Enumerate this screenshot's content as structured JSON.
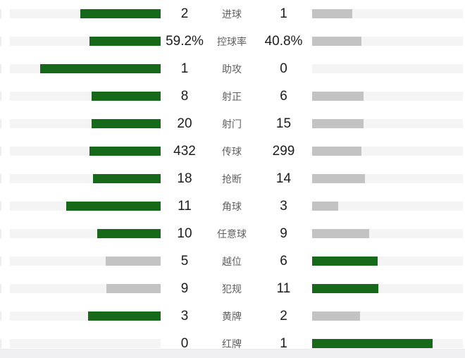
{
  "colors": {
    "background": "#ffffff",
    "leader_green": "#17691a",
    "trailer_gray": "#c3c3c3",
    "track_gray": "#f4f4f5",
    "value_text": "#1c1c1e",
    "label_text": "#5f5f61",
    "footer_strip": "#f0f0f2"
  },
  "chart_data": {
    "type": "bar",
    "orientation": "horizontal-paired",
    "title": "",
    "categories": [
      "进球",
      "控球率",
      "助攻",
      "射正",
      "射门",
      "传球",
      "抢断",
      "角球",
      "任意球",
      "越位",
      "犯规",
      "黄牌",
      "红牌"
    ],
    "series": [
      {
        "name": "home-team",
        "values": [
          2,
          59.2,
          1,
          8,
          20,
          432,
          18,
          11,
          10,
          5,
          9,
          3,
          0
        ]
      },
      {
        "name": "away-team",
        "values": [
          1,
          40.8,
          0,
          6,
          15,
          299,
          14,
          3,
          9,
          6,
          11,
          2,
          1
        ]
      }
    ],
    "grid": false,
    "legend": "none",
    "bar_scale": "each pair fills width proportional to value/(home+away), max 80% of track",
    "highlight_rule": "side with higher value rendered green, lower value rendered gray"
  },
  "rows": [
    {
      "label": "进球",
      "left": "2",
      "right": "1"
    },
    {
      "label": "控球率",
      "left": "59.2%",
      "right": "40.8%"
    },
    {
      "label": "助攻",
      "left": "1",
      "right": "0"
    },
    {
      "label": "射正",
      "left": "8",
      "right": "6"
    },
    {
      "label": "射门",
      "left": "20",
      "right": "15"
    },
    {
      "label": "传球",
      "left": "432",
      "right": "299"
    },
    {
      "label": "抢断",
      "left": "18",
      "right": "14"
    },
    {
      "label": "角球",
      "left": "11",
      "right": "3"
    },
    {
      "label": "任意球",
      "left": "10",
      "right": "9"
    },
    {
      "label": "越位",
      "left": "5",
      "right": "6"
    },
    {
      "label": "犯规",
      "left": "9",
      "right": "11"
    },
    {
      "label": "黄牌",
      "left": "3",
      "right": "2"
    },
    {
      "label": "红牌",
      "left": "0",
      "right": "1"
    }
  ]
}
